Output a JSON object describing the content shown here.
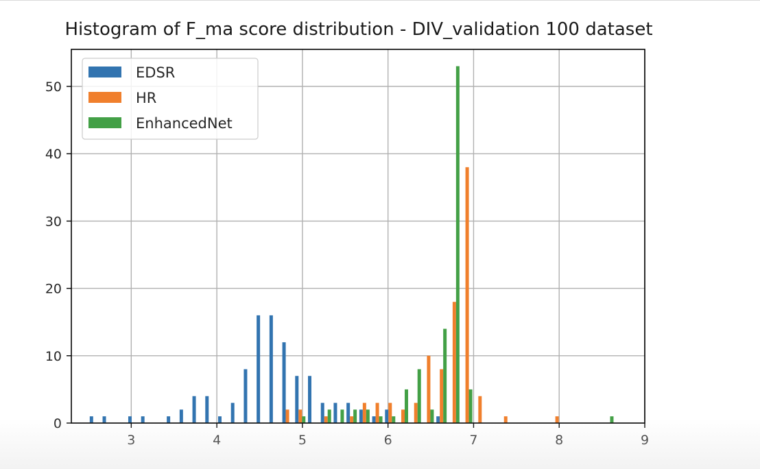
{
  "chart_data": {
    "type": "bar",
    "title": "Histogram of F_ma score distribution - DIV_validation 100 dataset",
    "xlabel": "",
    "ylabel": "",
    "xlim": [
      2.3,
      9.0
    ],
    "ylim": [
      0,
      55.5
    ],
    "xticks": [
      "3",
      "4",
      "5",
      "6",
      "7",
      "8",
      "9"
    ],
    "yticks": [
      "0",
      "10",
      "20",
      "30",
      "40",
      "50"
    ],
    "grid": true,
    "legend_position": "top-left",
    "bin_edges": [
      2.5,
      2.65,
      2.8,
      2.95,
      3.1,
      3.25,
      3.4,
      3.55,
      3.7,
      3.85,
      4.0,
      4.15,
      4.3,
      4.45,
      4.6,
      4.75,
      4.9,
      5.05,
      5.2,
      5.35,
      5.5,
      5.65,
      5.8,
      5.95,
      6.1,
      6.25,
      6.4,
      6.55,
      6.7,
      6.85,
      7.0,
      7.15,
      7.3,
      7.45,
      7.6,
      7.75,
      7.9,
      8.05,
      8.2,
      8.35,
      8.5,
      8.65,
      8.8
    ],
    "series": [
      {
        "name": "EDSR",
        "color": "#3274b0",
        "values": [
          1,
          1,
          0,
          1,
          1,
          0,
          1,
          2,
          4,
          4,
          1,
          3,
          8,
          16,
          16,
          12,
          7,
          7,
          3,
          3,
          3,
          2,
          1,
          2,
          0,
          0,
          0,
          1,
          0,
          0,
          0,
          0,
          0,
          0,
          0,
          0,
          0,
          0,
          0,
          0,
          0,
          0
        ]
      },
      {
        "name": "HR",
        "color": "#f07f2c",
        "values": [
          0,
          0,
          0,
          0,
          0,
          0,
          0,
          0,
          0,
          0,
          0,
          0,
          0,
          0,
          0,
          2,
          2,
          0,
          1,
          0,
          1,
          3,
          3,
          3,
          2,
          3,
          10,
          8,
          18,
          38,
          4,
          0,
          1,
          0,
          0,
          0,
          1,
          0,
          0,
          0,
          0,
          0
        ]
      },
      {
        "name": "EnhancedNet",
        "color": "#43a046",
        "values": [
          0,
          0,
          0,
          0,
          0,
          0,
          0,
          0,
          0,
          0,
          0,
          0,
          0,
          0,
          0,
          0,
          1,
          0,
          2,
          2,
          2,
          2,
          1,
          1,
          5,
          8,
          2,
          14,
          53,
          5,
          0,
          0,
          0,
          0,
          0,
          0,
          0,
          0,
          0,
          0,
          1,
          0
        ]
      }
    ]
  }
}
